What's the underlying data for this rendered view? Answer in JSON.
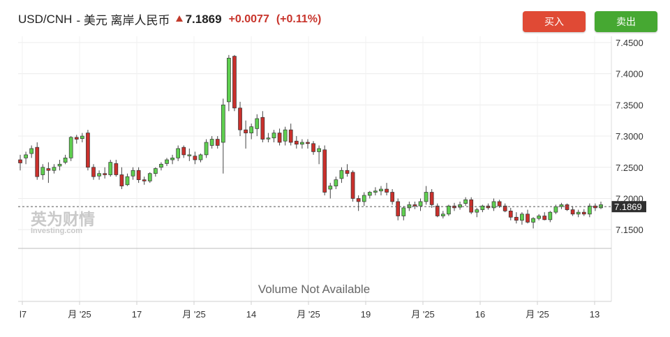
{
  "header": {
    "symbol": "USD/CNH",
    "name": "- 美元 离岸人民币",
    "price": "7.1869",
    "change": "+0.0077",
    "change_pct": "(+0.11%)",
    "buy_label": "买入",
    "sell_label": "卖出",
    "up_color": "#c8342b"
  },
  "watermark": {
    "cn": "英为财情",
    "en": "Investing",
    "en_suffix": ".com"
  },
  "volume_text": "Volume Not Available",
  "chart_data": {
    "type": "candlestick",
    "ylim": [
      7.12,
      7.46
    ],
    "y_ticks": [
      "7.4500",
      "7.4000",
      "7.3500",
      "7.3000",
      "7.2500",
      "7.2000",
      "7.1500"
    ],
    "x_ticks": [
      "l7",
      "月 '25",
      "17",
      "月 '25",
      "14",
      "月 '25",
      "19",
      "月 '25",
      "16",
      "月 '25",
      "13"
    ],
    "last_price": 7.1869,
    "last_price_label": "7.1869",
    "up_color": "#5fcf50",
    "down_color": "#c9302c",
    "ohlc": [
      [
        7.262,
        7.27,
        7.245,
        7.257
      ],
      [
        7.265,
        7.275,
        7.255,
        7.27
      ],
      [
        7.272,
        7.285,
        7.265,
        7.28
      ],
      [
        7.282,
        7.29,
        7.23,
        7.235
      ],
      [
        7.238,
        7.255,
        7.23,
        7.25
      ],
      [
        7.248,
        7.258,
        7.225,
        7.245
      ],
      [
        7.245,
        7.255,
        7.24,
        7.25
      ],
      [
        7.252,
        7.262,
        7.245,
        7.255
      ],
      [
        7.258,
        7.27,
        7.255,
        7.265
      ],
      [
        7.265,
        7.3,
        7.26,
        7.298
      ],
      [
        7.298,
        7.302,
        7.288,
        7.295
      ],
      [
        7.296,
        7.305,
        7.29,
        7.3
      ],
      [
        7.305,
        7.31,
        7.245,
        7.25
      ],
      [
        7.25,
        7.255,
        7.23,
        7.235
      ],
      [
        7.236,
        7.245,
        7.23,
        7.24
      ],
      [
        7.24,
        7.25,
        7.232,
        7.238
      ],
      [
        7.238,
        7.262,
        7.235,
        7.258
      ],
      [
        7.256,
        7.262,
        7.235,
        7.238
      ],
      [
        7.238,
        7.25,
        7.215,
        7.22
      ],
      [
        7.222,
        7.24,
        7.22,
        7.235
      ],
      [
        7.236,
        7.25,
        7.23,
        7.245
      ],
      [
        7.245,
        7.25,
        7.225,
        7.23
      ],
      [
        7.23,
        7.235,
        7.222,
        7.228
      ],
      [
        7.228,
        7.242,
        7.225,
        7.24
      ],
      [
        7.24,
        7.25,
        7.235,
        7.248
      ],
      [
        7.25,
        7.258,
        7.245,
        7.255
      ],
      [
        7.256,
        7.265,
        7.252,
        7.262
      ],
      [
        7.262,
        7.27,
        7.255,
        7.265
      ],
      [
        7.265,
        7.285,
        7.26,
        7.28
      ],
      [
        7.282,
        7.285,
        7.265,
        7.27
      ],
      [
        7.27,
        7.28,
        7.26,
        7.27
      ],
      [
        7.268,
        7.275,
        7.255,
        7.262
      ],
      [
        7.262,
        7.272,
        7.258,
        7.27
      ],
      [
        7.27,
        7.295,
        7.265,
        7.29
      ],
      [
        7.285,
        7.3,
        7.28,
        7.295
      ],
      [
        7.295,
        7.3,
        7.28,
        7.285
      ],
      [
        7.29,
        7.36,
        7.24,
        7.35
      ],
      [
        7.355,
        7.43,
        7.34,
        7.425
      ],
      [
        7.428,
        7.43,
        7.34,
        7.345
      ],
      [
        7.345,
        7.355,
        7.3,
        7.31
      ],
      [
        7.31,
        7.325,
        7.28,
        7.305
      ],
      [
        7.305,
        7.32,
        7.295,
        7.315
      ],
      [
        7.312,
        7.335,
        7.3,
        7.328
      ],
      [
        7.33,
        7.34,
        7.29,
        7.295
      ],
      [
        7.296,
        7.305,
        7.29,
        7.297
      ],
      [
        7.297,
        7.31,
        7.29,
        7.305
      ],
      [
        7.305,
        7.312,
        7.285,
        7.29
      ],
      [
        7.292,
        7.315,
        7.285,
        7.31
      ],
      [
        7.31,
        7.32,
        7.285,
        7.29
      ],
      [
        7.292,
        7.3,
        7.28,
        7.287
      ],
      [
        7.287,
        7.295,
        7.28,
        7.29
      ],
      [
        7.29,
        7.295,
        7.28,
        7.288
      ],
      [
        7.288,
        7.292,
        7.27,
        7.275
      ],
      [
        7.275,
        7.285,
        7.255,
        7.28
      ],
      [
        7.278,
        7.285,
        7.205,
        7.21
      ],
      [
        7.215,
        7.225,
        7.2,
        7.22
      ],
      [
        7.22,
        7.235,
        7.215,
        7.23
      ],
      [
        7.232,
        7.25,
        7.225,
        7.245
      ],
      [
        7.245,
        7.255,
        7.235,
        7.24
      ],
      [
        7.242,
        7.245,
        7.195,
        7.2
      ],
      [
        7.2,
        7.205,
        7.18,
        7.195
      ],
      [
        7.195,
        7.21,
        7.188,
        7.205
      ],
      [
        7.205,
        7.212,
        7.2,
        7.21
      ],
      [
        7.21,
        7.218,
        7.205,
        7.212
      ],
      [
        7.212,
        7.22,
        7.205,
        7.215
      ],
      [
        7.215,
        7.225,
        7.205,
        7.21
      ],
      [
        7.21,
        7.215,
        7.19,
        7.195
      ],
      [
        7.195,
        7.2,
        7.165,
        7.172
      ],
      [
        7.172,
        7.188,
        7.165,
        7.185
      ],
      [
        7.185,
        7.195,
        7.18,
        7.19
      ],
      [
        7.19,
        7.195,
        7.183,
        7.188
      ],
      [
        7.188,
        7.2,
        7.18,
        7.195
      ],
      [
        7.195,
        7.22,
        7.19,
        7.21
      ],
      [
        7.21,
        7.215,
        7.185,
        7.19
      ],
      [
        7.188,
        7.192,
        7.17,
        7.172
      ],
      [
        7.172,
        7.18,
        7.168,
        7.175
      ],
      [
        7.175,
        7.19,
        7.172,
        7.188
      ],
      [
        7.188,
        7.193,
        7.18,
        7.185
      ],
      [
        7.186,
        7.195,
        7.182,
        7.19
      ],
      [
        7.192,
        7.202,
        7.188,
        7.198
      ],
      [
        7.198,
        7.202,
        7.175,
        7.178
      ],
      [
        7.178,
        7.185,
        7.17,
        7.182
      ],
      [
        7.182,
        7.19,
        7.178,
        7.188
      ],
      [
        7.188,
        7.192,
        7.182,
        7.185
      ],
      [
        7.185,
        7.2,
        7.18,
        7.195
      ],
      [
        7.195,
        7.198,
        7.185,
        7.188
      ],
      [
        7.188,
        7.192,
        7.178,
        7.18
      ],
      [
        7.18,
        7.185,
        7.165,
        7.17
      ],
      [
        7.17,
        7.178,
        7.16,
        7.165
      ],
      [
        7.165,
        7.178,
        7.158,
        7.175
      ],
      [
        7.175,
        7.182,
        7.16,
        7.162
      ],
      [
        7.162,
        7.17,
        7.152,
        7.168
      ],
      [
        7.168,
        7.175,
        7.165,
        7.172
      ],
      [
        7.172,
        7.178,
        7.165,
        7.166
      ],
      [
        7.166,
        7.18,
        7.162,
        7.178
      ],
      [
        7.178,
        7.19,
        7.175,
        7.187
      ],
      [
        7.187,
        7.193,
        7.183,
        7.19
      ],
      [
        7.19,
        7.192,
        7.18,
        7.182
      ],
      [
        7.182,
        7.188,
        7.172,
        7.175
      ],
      [
        7.175,
        7.182,
        7.17,
        7.178
      ],
      [
        7.178,
        7.183,
        7.172,
        7.175
      ],
      [
        7.175,
        7.192,
        7.17,
        7.188
      ],
      [
        7.188,
        7.192,
        7.18,
        7.185
      ],
      [
        7.185,
        7.195,
        7.183,
        7.19
      ]
    ]
  }
}
